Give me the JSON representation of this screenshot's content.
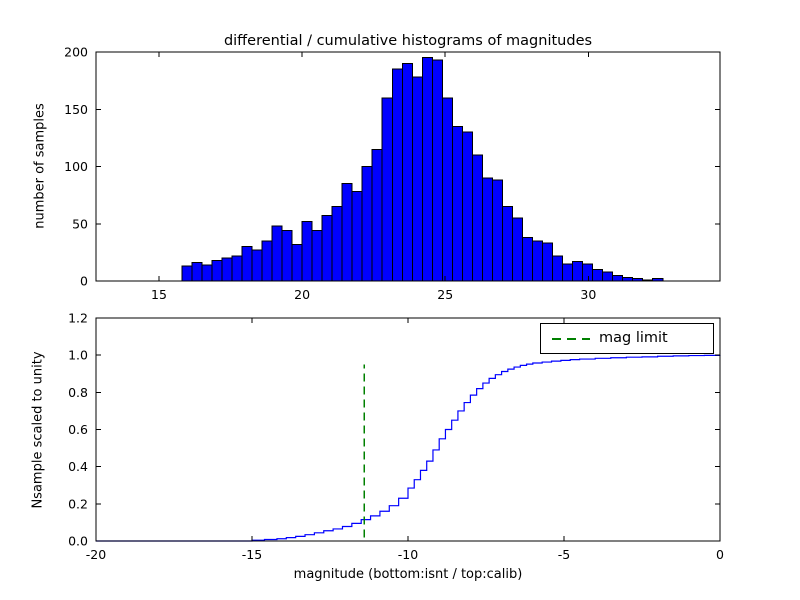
{
  "figure": {
    "background": "#ffffff"
  },
  "chart_data": [
    {
      "type": "bar",
      "title": "differential / cumulative histograms of magnitudes",
      "ylabel": "number of samples",
      "xlim": [
        12.8,
        34.6
      ],
      "ylim": [
        0,
        200
      ],
      "grid": false,
      "xticks": [
        {
          "v": 15,
          "label": "15"
        },
        {
          "v": 20,
          "label": "20"
        },
        {
          "v": 25,
          "label": "25"
        },
        {
          "v": 30,
          "label": "30"
        }
      ],
      "yticks": [
        {
          "v": 0,
          "label": "0"
        },
        {
          "v": 50,
          "label": "50"
        },
        {
          "v": 100,
          "label": "100"
        },
        {
          "v": 150,
          "label": "150"
        },
        {
          "v": 200,
          "label": "200"
        }
      ],
      "bar_color": "#0000ff",
      "bar_edge_color": "#000000",
      "bin_start": 15.8,
      "bin_width": 0.35,
      "counts": [
        13,
        16,
        14,
        18,
        20,
        22,
        30,
        27,
        35,
        48,
        44,
        32,
        52,
        44,
        57,
        65,
        85,
        78,
        100,
        115,
        160,
        185,
        190,
        178,
        195,
        193,
        160,
        135,
        130,
        110,
        90,
        88,
        65,
        55,
        38,
        35,
        33,
        22,
        15,
        17,
        15,
        10,
        8,
        5,
        3,
        2,
        1,
        2
      ]
    },
    {
      "type": "line",
      "ylabel": "Nsample scaled to unity",
      "xlabel": "magnitude (bottom:isnt / top:calib)",
      "xlim": [
        -20,
        0
      ],
      "ylim": [
        0,
        1.2
      ],
      "grid": false,
      "legend_loc": "upper right",
      "legend_label": "mag limit",
      "xticks": [
        {
          "v": -20,
          "label": "-20"
        },
        {
          "v": -15,
          "label": "-15"
        },
        {
          "v": -10,
          "label": "-10"
        },
        {
          "v": -5,
          "label": "-5"
        },
        {
          "v": 0,
          "label": "0"
        }
      ],
      "yticks": [
        {
          "v": 0.0,
          "label": "0.0"
        },
        {
          "v": 0.2,
          "label": "0.2"
        },
        {
          "v": 0.4,
          "label": "0.4"
        },
        {
          "v": 0.6,
          "label": "0.6"
        },
        {
          "v": 0.8,
          "label": "0.8"
        },
        {
          "v": 1.0,
          "label": "1.0"
        },
        {
          "v": 1.2,
          "label": "1.2"
        }
      ],
      "line_color": "#0000ff",
      "mag_limit": {
        "x": -11.4,
        "color": "#008000",
        "y_span": [
          0.02,
          0.95
        ],
        "dash": "8,5"
      },
      "steps": [
        [
          -20,
          0
        ],
        [
          -15,
          0.004
        ],
        [
          -14.6,
          0.008
        ],
        [
          -14.2,
          0.012
        ],
        [
          -13.9,
          0.018
        ],
        [
          -13.6,
          0.025
        ],
        [
          -13.3,
          0.034
        ],
        [
          -13.0,
          0.044
        ],
        [
          -12.7,
          0.055
        ],
        [
          -12.4,
          0.065
        ],
        [
          -12.1,
          0.078
        ],
        [
          -11.8,
          0.095
        ],
        [
          -11.5,
          0.115
        ],
        [
          -11.2,
          0.135
        ],
        [
          -10.9,
          0.16
        ],
        [
          -10.6,
          0.19
        ],
        [
          -10.3,
          0.23
        ],
        [
          -10.0,
          0.285
        ],
        [
          -9.8,
          0.33
        ],
        [
          -9.6,
          0.38
        ],
        [
          -9.4,
          0.43
        ],
        [
          -9.2,
          0.49
        ],
        [
          -9.0,
          0.55
        ],
        [
          -8.8,
          0.6
        ],
        [
          -8.6,
          0.65
        ],
        [
          -8.4,
          0.7
        ],
        [
          -8.2,
          0.745
        ],
        [
          -8.0,
          0.785
        ],
        [
          -7.8,
          0.82
        ],
        [
          -7.6,
          0.85
        ],
        [
          -7.4,
          0.875
        ],
        [
          -7.2,
          0.895
        ],
        [
          -7.0,
          0.912
        ],
        [
          -6.8,
          0.925
        ],
        [
          -6.6,
          0.936
        ],
        [
          -6.4,
          0.945
        ],
        [
          -6.2,
          0.952
        ],
        [
          -6.0,
          0.958
        ],
        [
          -5.7,
          0.963
        ],
        [
          -5.4,
          0.968
        ],
        [
          -5.1,
          0.972
        ],
        [
          -4.8,
          0.976
        ],
        [
          -4.5,
          0.979
        ],
        [
          -4.0,
          0.983
        ],
        [
          -3.5,
          0.986
        ],
        [
          -3.0,
          0.989
        ],
        [
          -2.5,
          0.991
        ],
        [
          -2.0,
          0.994
        ],
        [
          -1.5,
          0.996
        ],
        [
          -1.0,
          0.998
        ],
        [
          -0.5,
          0.999
        ],
        [
          0,
          1.0
        ]
      ]
    }
  ]
}
